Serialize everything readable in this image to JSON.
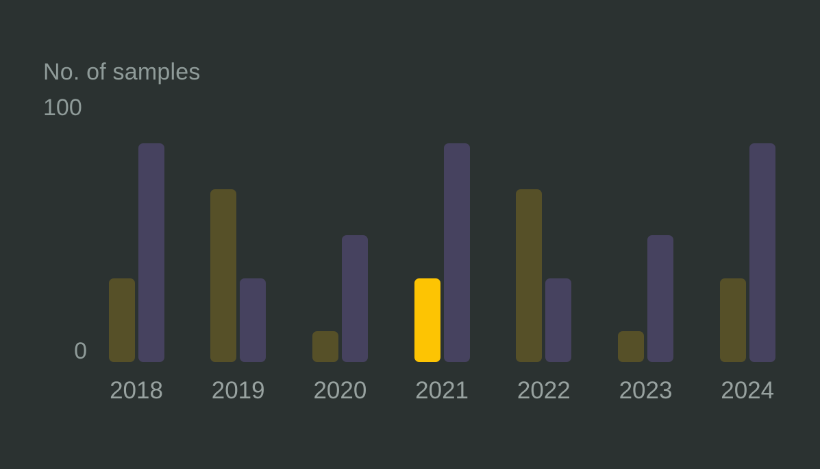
{
  "chart": {
    "title": "No. of samples",
    "y_axis": {
      "top_label": "100",
      "bottom_label": "0"
    }
  },
  "chart_data": {
    "type": "bar",
    "title": "No. of samples",
    "categories": [
      "2018",
      "2019",
      "2020",
      "2021",
      "2022",
      "2023",
      "2024"
    ],
    "series": [
      {
        "name": "left-bar-series",
        "color": "#565028",
        "values": [
          33,
          68,
          12,
          33,
          68,
          12,
          33
        ],
        "highlight_index": 3,
        "highlight_color": "#fdc403"
      },
      {
        "name": "right-bar-series",
        "color": "#46425f",
        "values": [
          86,
          33,
          50,
          86,
          33,
          50,
          86
        ]
      }
    ],
    "xlabel": "",
    "ylabel": "No. of samples",
    "ylim": [
      0,
      100
    ],
    "yticks": [
      0,
      100
    ],
    "grid": false,
    "legend": "none",
    "background_color": "#2b3231",
    "axis_text_color": "#8f9b99",
    "category_text_color": "#98a2a0"
  }
}
